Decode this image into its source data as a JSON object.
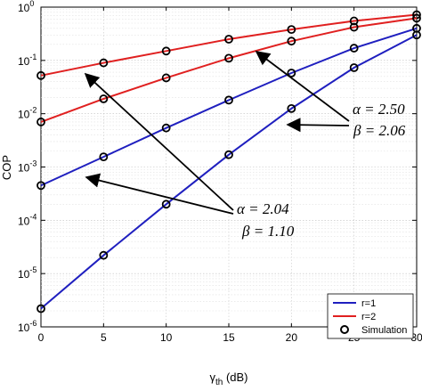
{
  "chart_data": {
    "type": "line",
    "ylabel": "COP",
    "xlabel_main": "γ",
    "xlabel_sub": "th",
    "xlabel_unit": " (dB)",
    "xlim": [
      0,
      30
    ],
    "ylim": [
      1e-06,
      1
    ],
    "y_scale": "log",
    "grid": true,
    "x_ticks": [
      0,
      5,
      10,
      15,
      20,
      25,
      30
    ],
    "x_tick_labels": [
      "0",
      "5",
      "10",
      "15",
      "20",
      "25",
      "30"
    ],
    "y_ticks": [
      1e-06,
      1e-05,
      0.0001,
      0.001,
      0.01,
      0.1,
      1
    ],
    "y_tick_bases": [
      "10",
      "10",
      "10",
      "10",
      "10",
      "10",
      "10"
    ],
    "y_tick_exps": [
      "-6",
      "-5",
      "-4",
      "-3",
      "-2",
      "-1",
      "0"
    ],
    "x": [
      0,
      5,
      10,
      15,
      20,
      25,
      30
    ],
    "series": [
      {
        "name": "r=1",
        "color": "#1f1fbf",
        "group": "a",
        "values": [
          0.00045,
          0.00155,
          0.0054,
          0.018,
          0.058,
          0.17,
          0.4
        ]
      },
      {
        "name": "",
        "color": "#1f1fbf",
        "group": "b",
        "values": [
          2.2e-06,
          2.2e-05,
          0.0002,
          0.0017,
          0.0125,
          0.073,
          0.3
        ]
      },
      {
        "name": "r=2",
        "color": "#e02020",
        "group": "a",
        "values": [
          0.052,
          0.09,
          0.15,
          0.25,
          0.38,
          0.55,
          0.72
        ]
      },
      {
        "name": "",
        "color": "#e02020",
        "group": "b",
        "values": [
          0.007,
          0.019,
          0.047,
          0.11,
          0.23,
          0.42,
          0.62
        ]
      }
    ],
    "legend": {
      "placement": "bottom-right",
      "entries": [
        {
          "label": "r=1",
          "kind": "line",
          "color": "#1f1fbf"
        },
        {
          "label": "r=2",
          "kind": "line",
          "color": "#e02020"
        },
        {
          "label": "Simulation",
          "kind": "marker",
          "color": "#000000"
        }
      ]
    },
    "annotations": [
      {
        "id": "upper",
        "line1": "α = 2.50",
        "line2": "β = 2.06"
      },
      {
        "id": "lower",
        "line1": "α = 2.04",
        "line2": "β = 1.10"
      }
    ]
  }
}
